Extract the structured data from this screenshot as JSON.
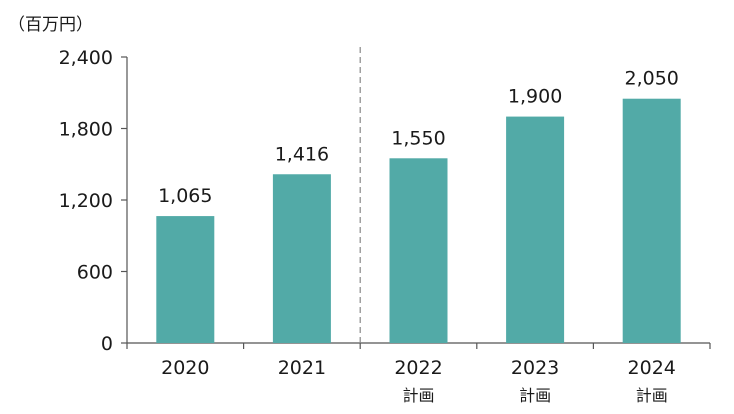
{
  "chart_data": {
    "type": "bar",
    "unit_label": "（百万円）",
    "categories": [
      {
        "name": "2020",
        "sub": ""
      },
      {
        "name": "2021",
        "sub": ""
      },
      {
        "name": "2022",
        "sub": "計画"
      },
      {
        "name": "2023",
        "sub": "計画"
      },
      {
        "name": "2024",
        "sub": "計画"
      }
    ],
    "values": [
      1065,
      1416,
      1550,
      1900,
      2050
    ],
    "value_labels": [
      "1,065",
      "1,416",
      "1,550",
      "1,900",
      "2,050"
    ],
    "yticks": [
      0,
      600,
      1200,
      1800,
      2400
    ],
    "ytick_labels": [
      "0",
      "600",
      "1,200",
      "1,800",
      "2,400"
    ],
    "ylim": [
      0,
      2400
    ],
    "bar_color": "#52aaa7",
    "axis_color": "#555555",
    "divider": {
      "after_index": 1,
      "style": "dashed",
      "color": "#888888"
    },
    "grid": false,
    "legend": "none"
  }
}
